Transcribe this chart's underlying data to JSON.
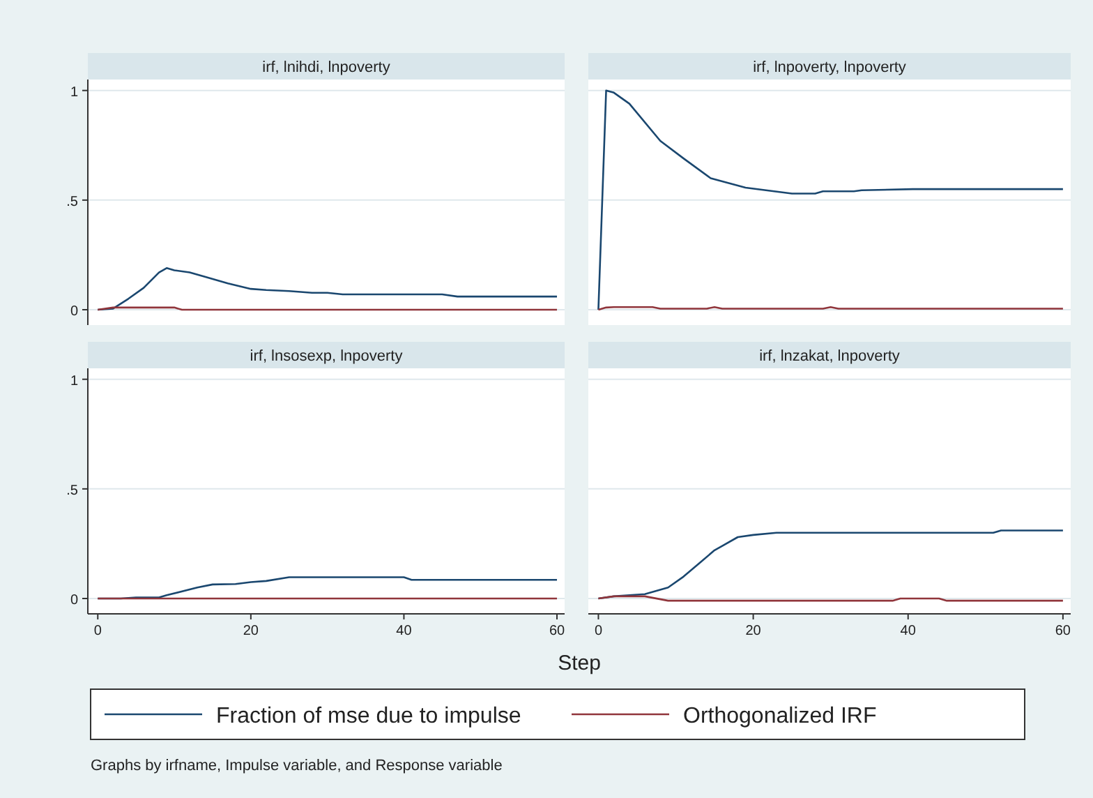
{
  "chart_data": [
    {
      "type": "line",
      "title": "irf, lnihdi, lnpoverty",
      "xlim": [
        -1.3,
        61
      ],
      "ylim": [
        -0.07,
        1.05
      ],
      "xticks": [
        0,
        20,
        40,
        60
      ],
      "yticks": [
        0,
        {
          "value": 0.5,
          "label": ".5"
        },
        1
      ],
      "grid": "y",
      "tick_labels": "y",
      "legend": "bottom",
      "annotations": [
        "Graphs by irfname, Impulse variable, and Response variable"
      ],
      "series": [
        {
          "name": "Fraction of mse due to impulse",
          "color": "#1a476f",
          "x": [
            0,
            2,
            4,
            6,
            8,
            9,
            10,
            12,
            14,
            17,
            20,
            22,
            25,
            28,
            30,
            32,
            40,
            45,
            47,
            60
          ],
          "values": [
            0,
            0.005,
            0.05,
            0.1,
            0.17,
            0.19,
            0.18,
            0.17,
            0.15,
            0.12,
            0.095,
            0.09,
            0.085,
            0.077,
            0.077,
            0.07,
            0.07,
            0.07,
            0.06,
            0.06
          ]
        },
        {
          "name": "Orthogonalized IRF",
          "color": "#90353b",
          "x": [
            0,
            2,
            10,
            11,
            60
          ],
          "values": [
            0,
            0.01,
            0.01,
            0,
            0
          ]
        }
      ]
    },
    {
      "type": "line",
      "title": "irf, lnpoverty, lnpoverty",
      "xlim": [
        -1.3,
        61
      ],
      "ylim": [
        -0.07,
        1.05
      ],
      "xticks": [
        0,
        20,
        40,
        60
      ],
      "yticks": [
        0,
        0.5,
        1
      ],
      "grid": "y",
      "tick_labels": false,
      "series": [
        {
          "color": "#1a476f",
          "x": [
            0,
            1,
            2,
            4,
            8,
            11,
            14.5,
            19,
            25,
            28,
            29,
            33,
            34,
            40.6,
            60
          ],
          "values": [
            0,
            1,
            0.99,
            0.94,
            0.77,
            0.69,
            0.6,
            0.557,
            0.53,
            0.53,
            0.54,
            0.54,
            0.545,
            0.55,
            0.55
          ]
        },
        {
          "color": "#90353b",
          "x": [
            0,
            1,
            2,
            7,
            8,
            14,
            15,
            16,
            29,
            30,
            31,
            60
          ],
          "values": [
            0,
            0.01,
            0.012,
            0.012,
            0.005,
            0.005,
            0.012,
            0.005,
            0.005,
            0.012,
            0.005,
            0.005
          ]
        }
      ]
    },
    {
      "type": "line",
      "title": "irf, lnsosexp, lnpoverty",
      "xlabel": "Step",
      "xlim": [
        -1.3,
        61
      ],
      "ylim": [
        -0.07,
        1.05
      ],
      "xticks": [
        0,
        20,
        40,
        60
      ],
      "yticks": [
        0,
        {
          "value": 0.5,
          "label": ".5"
        },
        1
      ],
      "grid": "y",
      "series": [
        {
          "color": "#1a476f",
          "x": [
            0,
            3,
            5,
            8,
            9,
            13,
            15,
            18,
            20,
            22,
            25,
            40,
            41,
            60
          ],
          "values": [
            0,
            0,
            0.005,
            0.005,
            0.015,
            0.05,
            0.064,
            0.066,
            0.075,
            0.08,
            0.097,
            0.097,
            0.085,
            0.085
          ]
        },
        {
          "color": "#90353b",
          "x": [
            0,
            60
          ],
          "values": [
            0,
            0
          ]
        }
      ]
    },
    {
      "type": "line",
      "title": "irf, lnzakat, lnpoverty",
      "xlim": [
        -1.3,
        61
      ],
      "ylim": [
        -0.07,
        1.05
      ],
      "xticks": [
        0,
        20,
        40,
        60
      ],
      "yticks": [
        0,
        0.5,
        1
      ],
      "grid": "y",
      "tick_labels": "x",
      "series": [
        {
          "color": "#1a476f",
          "x": [
            0,
            2,
            6,
            9,
            11,
            13,
            15,
            16,
            18,
            20,
            23,
            51,
            52,
            60
          ],
          "values": [
            0,
            0.01,
            0.02,
            0.05,
            0.1,
            0.16,
            0.22,
            0.24,
            0.28,
            0.29,
            0.3,
            0.3,
            0.31,
            0.31
          ]
        },
        {
          "color": "#90353b",
          "x": [
            0,
            2,
            6,
            9,
            38,
            39,
            44,
            45,
            60
          ],
          "values": [
            0,
            0.01,
            0.01,
            -0.01,
            -0.01,
            0,
            0,
            -0.01,
            -0.01
          ]
        }
      ]
    }
  ]
}
